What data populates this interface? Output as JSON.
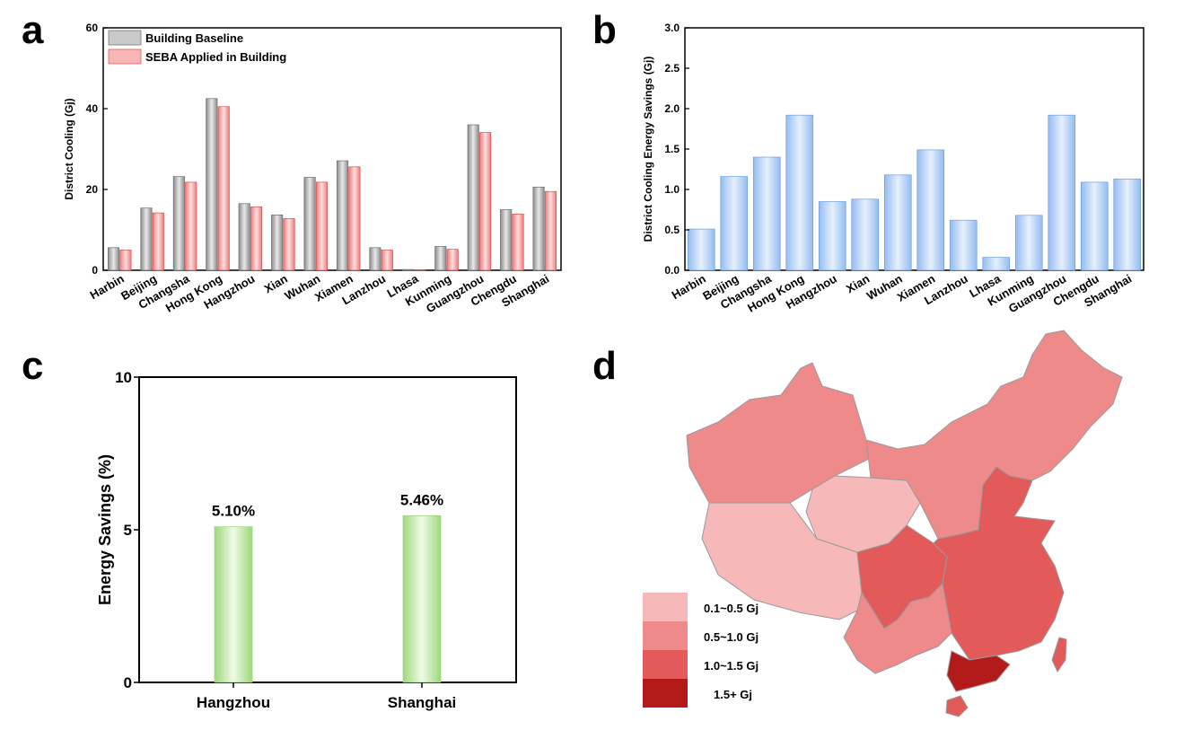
{
  "panels": {
    "a": "a",
    "b": "b",
    "c": "c",
    "d": "d"
  },
  "colors": {
    "baseline": "#a8a8a8",
    "seba": "#f39a9a",
    "savings": "#a9c8f3",
    "percent": "#b7e39b",
    "map_0_1_0_5": "#f6b8b8",
    "map_0_5_1_0": "#ee8a8a",
    "map_1_0_1_5": "#e35a5a",
    "map_1_5_plus": "#b31a1a"
  },
  "chart_data": [
    {
      "id": "a",
      "type": "bar",
      "title": "",
      "xlabel": "",
      "ylabel": "District Cooling (Gj)",
      "ylim": [
        0,
        60
      ],
      "yticks": [
        0,
        20,
        40,
        60
      ],
      "categories": [
        "Harbin",
        "Beijing",
        "Changsha",
        "Hong Kong",
        "Hangzhou",
        "Xian",
        "Wuhan",
        "Xiamen",
        "Lanzhou",
        "Lhasa",
        "Kunming",
        "Guangzhou",
        "Chengdu",
        "Shanghai"
      ],
      "series": [
        {
          "name": "Building Baseline",
          "values": [
            5.6,
            15.4,
            23.2,
            42.5,
            16.5,
            13.7,
            23.0,
            27.1,
            5.6,
            0.2,
            5.9,
            36.0,
            15.0,
            20.6
          ]
        },
        {
          "name": "SEBA Applied in Building",
          "values": [
            5.0,
            14.2,
            21.8,
            40.5,
            15.7,
            12.8,
            21.8,
            25.6,
            5.0,
            0.05,
            5.2,
            34.1,
            13.9,
            19.5
          ]
        }
      ],
      "legend": "top-left"
    },
    {
      "id": "b",
      "type": "bar",
      "title": "",
      "xlabel": "",
      "ylabel": "District Cooling Energy Savings (Gj)",
      "ylim": [
        0,
        3.0
      ],
      "yticks": [
        "0.0",
        "0.5",
        "1.0",
        "1.5",
        "2.0",
        "2.5",
        "3.0"
      ],
      "categories": [
        "Harbin",
        "Beijing",
        "Changsha",
        "Hong Kong",
        "Hangzhou",
        "Xian",
        "Wuhan",
        "Xiamen",
        "Lanzhou",
        "Lhasa",
        "Kunming",
        "Guangzhou",
        "Chengdu",
        "Shanghai"
      ],
      "values": [
        0.51,
        1.16,
        1.4,
        1.92,
        0.85,
        0.88,
        1.18,
        1.49,
        0.62,
        0.16,
        0.68,
        1.92,
        1.09,
        1.13
      ]
    },
    {
      "id": "c",
      "type": "bar",
      "title": "",
      "xlabel": "",
      "ylabel": "Energy Savings (%)",
      "ylim": [
        0,
        10
      ],
      "yticks": [
        0,
        5,
        10
      ],
      "categories": [
        "Hangzhou",
        "Shanghai"
      ],
      "values": [
        5.1,
        5.46
      ],
      "data_labels": [
        "5.10%",
        "5.46%"
      ]
    }
  ],
  "map": {
    "legend": [
      "0.1~0.5 Gj",
      "0.5~1.0 Gj",
      "1.0~1.5 Gj",
      "1.5+ Gj"
    ]
  }
}
